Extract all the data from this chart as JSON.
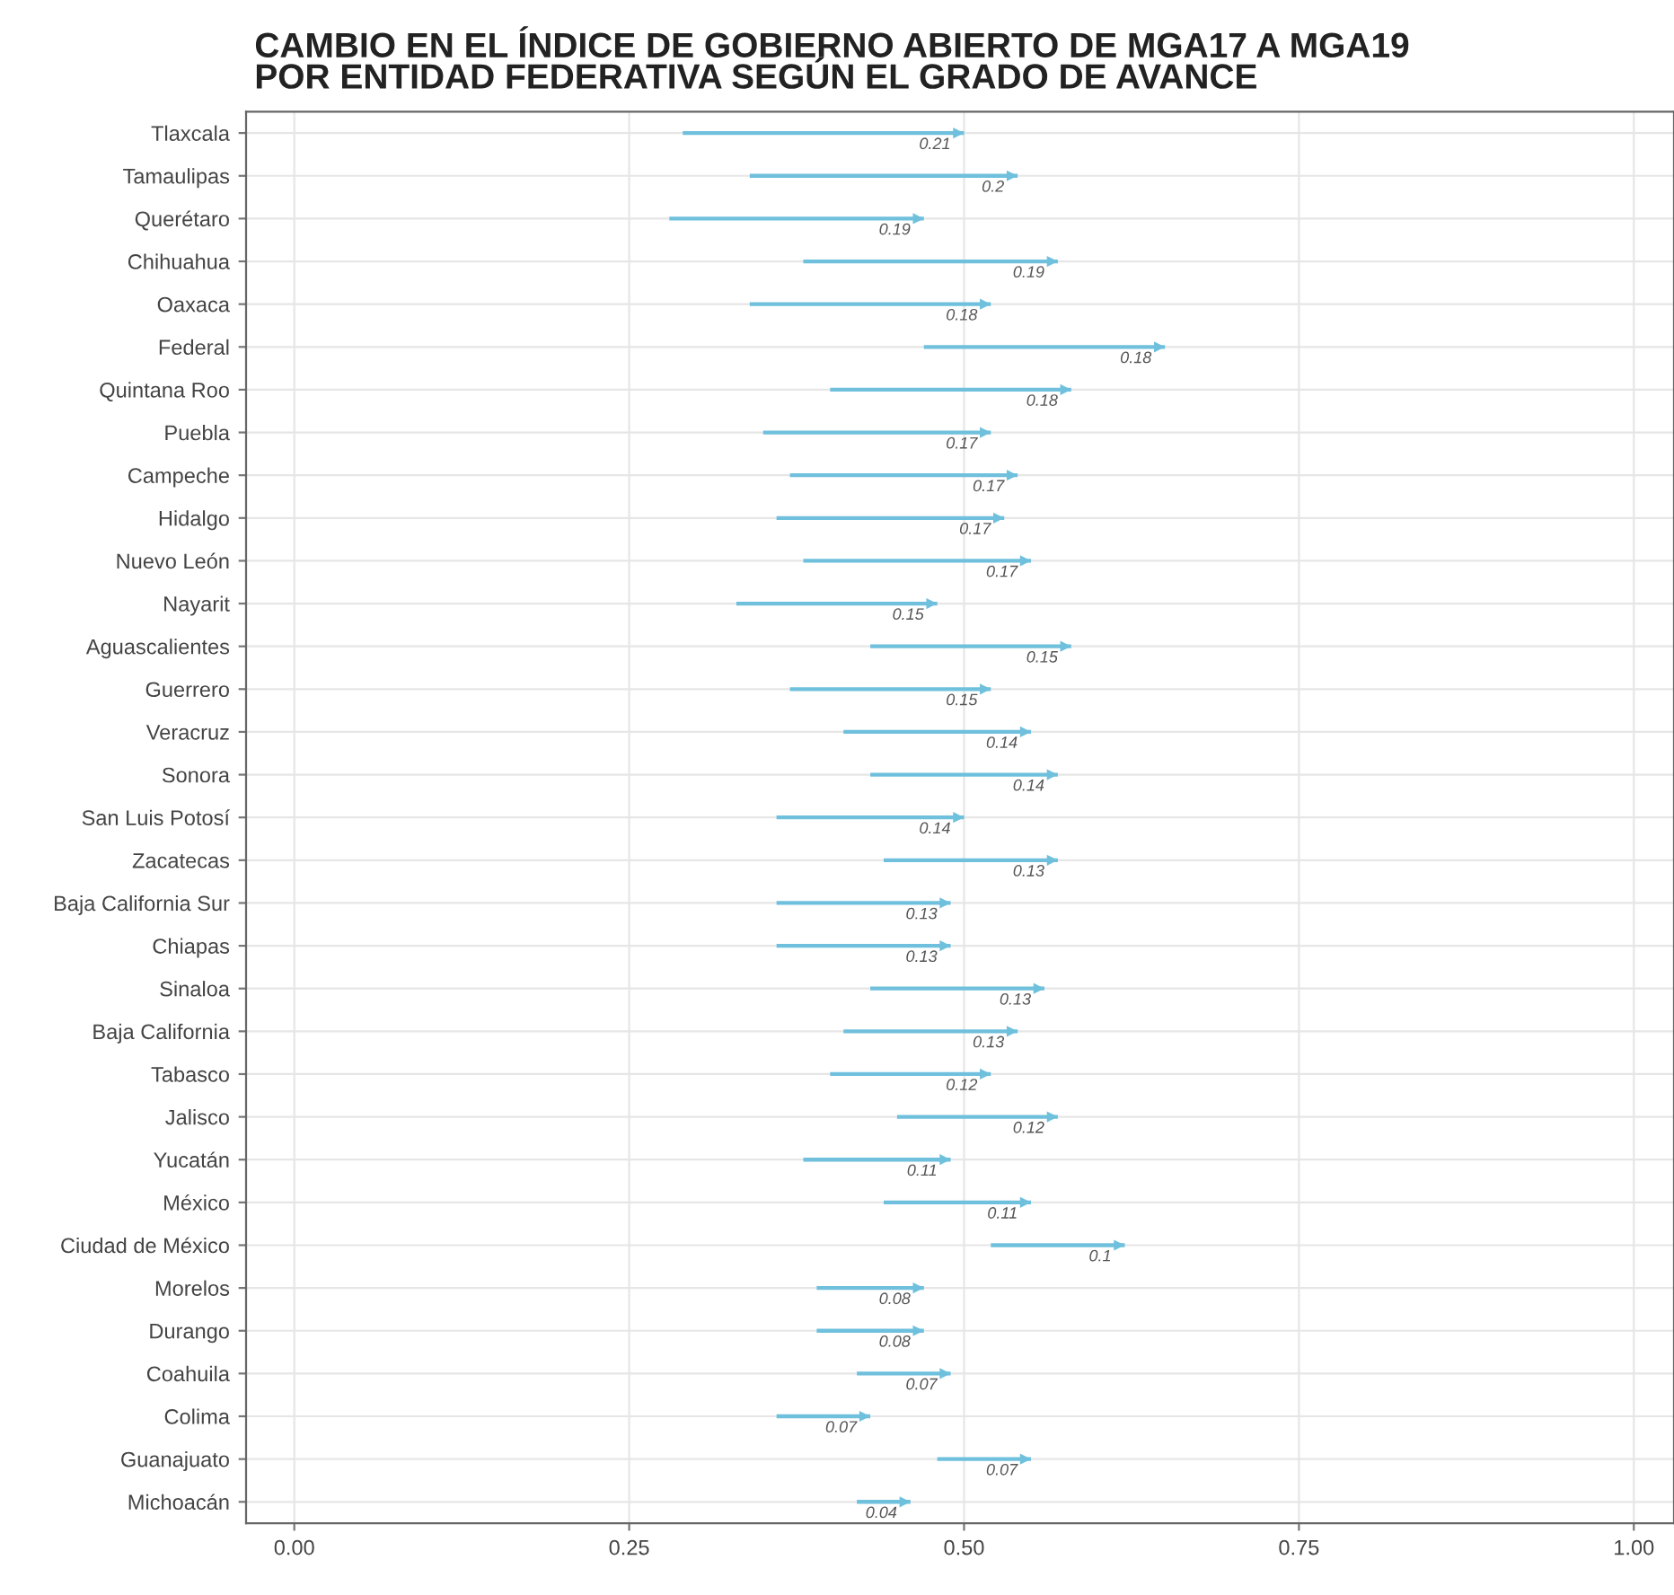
{
  "chart_data": {
    "type": "bar",
    "orientation": "horizontal",
    "title": "CAMBIO EN EL ÍNDICE DE GOBIERNO ABIERTO DE MGA17 A MGA19\nPOR ENTIDAD FEDERATIVA SEGÚN EL GRADO DE AVANCE",
    "categories": [
      "Tlaxcala",
      "Tamaulipas",
      "Querétaro",
      "Chihuahua",
      "Oaxaca",
      "Federal",
      "Quintana Roo",
      "Puebla",
      "Campeche",
      "Hidalgo",
      "Nuevo León",
      "Nayarit",
      "Aguascalientes",
      "Guerrero",
      "Veracruz",
      "Sonora",
      "San Luis Potosí",
      "Zacatecas",
      "Baja California Sur",
      "Chiapas",
      "Sinaloa",
      "Baja California",
      "Tabasco",
      "Jalisco",
      "Yucatán",
      "México",
      "Ciudad de México",
      "Morelos",
      "Durango",
      "Coahuila",
      "Colima",
      "Guanajuato",
      "Michoacán"
    ],
    "base": [
      0.29,
      0.34,
      0.28,
      0.38,
      0.34,
      0.47,
      0.4,
      0.35,
      0.37,
      0.36,
      0.38,
      0.33,
      0.43,
      0.37,
      0.41,
      0.43,
      0.36,
      0.44,
      0.36,
      0.36,
      0.43,
      0.41,
      0.4,
      0.45,
      0.38,
      0.44,
      0.52,
      0.39,
      0.39,
      0.42,
      0.36,
      0.48,
      0.42
    ],
    "values": [
      0.21,
      0.2,
      0.19,
      0.19,
      0.18,
      0.18,
      0.18,
      0.17,
      0.17,
      0.17,
      0.17,
      0.15,
      0.15,
      0.15,
      0.14,
      0.14,
      0.14,
      0.13,
      0.13,
      0.13,
      0.13,
      0.13,
      0.12,
      0.12,
      0.11,
      0.11,
      0.1,
      0.08,
      0.08,
      0.07,
      0.07,
      0.07,
      0.04
    ],
    "value_labels": [
      "0.21",
      "0.2",
      "0.19",
      "0.19",
      "0.18",
      "0.18",
      "0.18",
      "0.17",
      "0.17",
      "0.17",
      "0.17",
      "0.15",
      "0.15",
      "0.15",
      "0.14",
      "0.14",
      "0.14",
      "0.13",
      "0.13",
      "0.13",
      "0.13",
      "0.13",
      "0.12",
      "0.12",
      "0.11",
      "0.11",
      "0.1",
      "0.08",
      "0.08",
      "0.07",
      "0.07",
      "0.07",
      "0.04"
    ],
    "color": "#6fc0dc",
    "xlim": [
      -0.036,
      1.03
    ],
    "xticks": [
      {
        "value": 0,
        "label": "0.00"
      },
      {
        "value": 0.25,
        "label": "0.25"
      },
      {
        "value": 0.5,
        "label": "0.50"
      },
      {
        "value": 0.75,
        "label": "0.75"
      },
      {
        "value": 1,
        "label": "1.00"
      }
    ],
    "grid": true
  }
}
